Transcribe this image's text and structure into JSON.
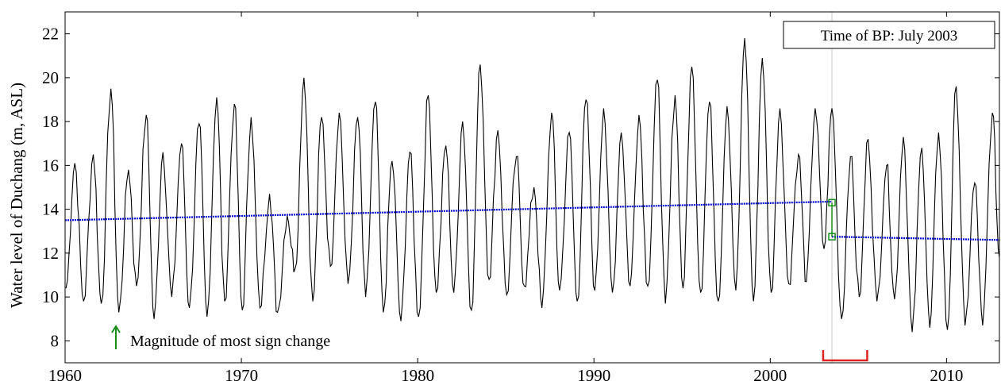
{
  "chart_data": {
    "type": "line",
    "title": "",
    "xlabel": "",
    "ylabel": "Water level of Duchang (m, ASL)",
    "xlim": [
      1960,
      2013
    ],
    "ylim": [
      7,
      23
    ],
    "x_ticks": [
      1960,
      1970,
      1980,
      1990,
      2000,
      2010
    ],
    "y_ticks": [
      8,
      10,
      12,
      14,
      16,
      18,
      20,
      22
    ],
    "x_tick_labels": [
      "1960",
      "1970",
      "1980",
      "1990",
      "2000",
      "2010"
    ],
    "y_tick_labels": [
      "8",
      "10",
      "12",
      "14",
      "16",
      "18",
      "20",
      "22"
    ],
    "grid": false,
    "legend": "none",
    "breakpoint_label": "Time of BP: July 2003",
    "breakpoint_x": 2003.5,
    "annotation_label": "Magnitude of  most sign change",
    "uncertainty_interval": [
      2003.0,
      2005.5
    ],
    "series": [
      {
        "role": "observed",
        "color": "#000000",
        "annual_peaks": [
          [
            1960.55,
            16.1
          ],
          [
            1961.6,
            16.5
          ],
          [
            1962.6,
            19.5
          ],
          [
            1963.6,
            15.8
          ],
          [
            1964.6,
            18.3
          ],
          [
            1965.55,
            16.6
          ],
          [
            1966.6,
            17.0
          ],
          [
            1967.6,
            17.9
          ],
          [
            1968.6,
            19.1
          ],
          [
            1969.6,
            18.8
          ],
          [
            1970.55,
            18.2
          ],
          [
            1971.6,
            14.7
          ],
          [
            1972.6,
            13.7
          ],
          [
            1973.55,
            20.0
          ],
          [
            1974.55,
            18.2
          ],
          [
            1975.55,
            18.4
          ],
          [
            1976.6,
            18.2
          ],
          [
            1977.6,
            18.9
          ],
          [
            1978.55,
            16.2
          ],
          [
            1979.55,
            16.6
          ],
          [
            1980.6,
            19.2
          ],
          [
            1981.6,
            16.9
          ],
          [
            1982.55,
            18.0
          ],
          [
            1983.55,
            20.6
          ],
          [
            1984.55,
            17.6
          ],
          [
            1985.6,
            16.4
          ],
          [
            1986.6,
            15.0
          ],
          [
            1987.6,
            18.4
          ],
          [
            1988.6,
            17.5
          ],
          [
            1989.55,
            19.0
          ],
          [
            1990.55,
            18.6
          ],
          [
            1991.55,
            17.5
          ],
          [
            1992.55,
            18.3
          ],
          [
            1993.6,
            19.9
          ],
          [
            1994.6,
            19.2
          ],
          [
            1995.55,
            20.5
          ],
          [
            1996.55,
            18.9
          ],
          [
            1997.55,
            18.7
          ],
          [
            1998.55,
            21.8
          ],
          [
            1999.55,
            20.9
          ],
          [
            2000.55,
            18.6
          ],
          [
            2001.6,
            16.5
          ],
          [
            2002.55,
            18.6
          ],
          [
            2003.5,
            18.6
          ],
          [
            2004.55,
            16.4
          ],
          [
            2005.55,
            17.2
          ],
          [
            2006.6,
            16.0
          ],
          [
            2007.55,
            17.3
          ],
          [
            2008.6,
            16.8
          ],
          [
            2009.55,
            17.5
          ],
          [
            2010.55,
            19.6
          ],
          [
            2011.6,
            15.2
          ],
          [
            2012.6,
            18.4
          ]
        ],
        "annual_lows": [
          [
            1960.05,
            10.4
          ],
          [
            1961.05,
            9.8
          ],
          [
            1962.05,
            9.7
          ],
          [
            1963.05,
            9.3
          ],
          [
            1964.05,
            10.5
          ],
          [
            1965.05,
            9.0
          ],
          [
            1966.05,
            10.0
          ],
          [
            1967.05,
            9.5
          ],
          [
            1968.05,
            9.1
          ],
          [
            1969.05,
            9.8
          ],
          [
            1970.05,
            9.4
          ],
          [
            1971.05,
            9.5
          ],
          [
            1972.05,
            9.3
          ],
          [
            1973.05,
            11.3
          ],
          [
            1974.05,
            9.8
          ],
          [
            1975.05,
            11.4
          ],
          [
            1976.05,
            10.6
          ],
          [
            1977.05,
            10.0
          ],
          [
            1978.05,
            9.3
          ],
          [
            1979.05,
            8.9
          ],
          [
            1980.05,
            9.1
          ],
          [
            1981.05,
            10.2
          ],
          [
            1982.05,
            10.2
          ],
          [
            1983.05,
            9.4
          ],
          [
            1984.05,
            10.8
          ],
          [
            1985.05,
            10.1
          ],
          [
            1986.05,
            10.5
          ],
          [
            1987.05,
            9.5
          ],
          [
            1988.05,
            10.3
          ],
          [
            1989.05,
            9.8
          ],
          [
            1990.05,
            10.3
          ],
          [
            1991.05,
            10.2
          ],
          [
            1992.05,
            10.5
          ],
          [
            1993.05,
            10.5
          ],
          [
            1994.05,
            9.7
          ],
          [
            1995.05,
            10.4
          ],
          [
            1996.05,
            10.2
          ],
          [
            1997.05,
            9.8
          ],
          [
            1998.05,
            10.3
          ],
          [
            1999.05,
            9.8
          ],
          [
            2000.05,
            10.2
          ],
          [
            2001.05,
            10.6
          ],
          [
            2002.05,
            10.7
          ],
          [
            2003.05,
            12.2
          ],
          [
            2004.05,
            9.0
          ],
          [
            2005.05,
            10.0
          ],
          [
            2006.05,
            9.8
          ],
          [
            2007.05,
            9.9
          ],
          [
            2008.05,
            8.4
          ],
          [
            2009.05,
            8.6
          ],
          [
            2010.05,
            8.5
          ],
          [
            2011.05,
            8.7
          ],
          [
            2012.05,
            8.7
          ],
          [
            2013.0,
            11.8
          ]
        ]
      },
      {
        "role": "trend before breakpoint",
        "color": "#0000cc",
        "x": [
          1960,
          2003.5
        ],
        "y": [
          13.5,
          14.35
        ]
      },
      {
        "role": "trend after breakpoint",
        "color": "#0000cc",
        "x": [
          2003.5,
          2013
        ],
        "y": [
          12.75,
          12.6
        ]
      }
    ],
    "change_markers": {
      "color": "#1a8c1a",
      "x": 2003.5,
      "y_before": 14.3,
      "y_after": 12.75
    }
  }
}
